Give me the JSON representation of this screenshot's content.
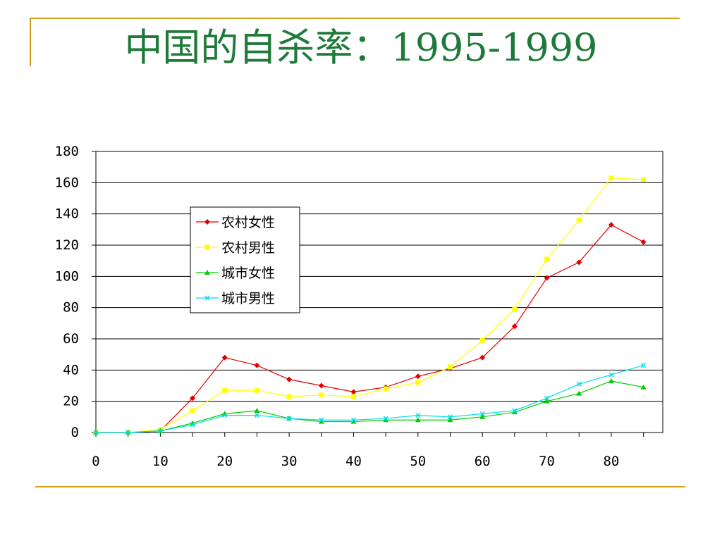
{
  "title": "中国的自杀率：1995-1999",
  "colors": {
    "accent_line": "#D4A017",
    "title": "#1F7A3A"
  },
  "chart_data": {
    "type": "line",
    "x": [
      0,
      5,
      10,
      15,
      20,
      25,
      30,
      35,
      40,
      45,
      50,
      55,
      60,
      65,
      70,
      75,
      80,
      85
    ],
    "xlim": [
      0,
      88
    ],
    "ylim": [
      0,
      180
    ],
    "x_ticks": [
      0,
      10,
      20,
      30,
      40,
      50,
      60,
      70,
      80
    ],
    "y_ticks": [
      0,
      20,
      40,
      60,
      80,
      100,
      120,
      140,
      160,
      180
    ],
    "grid": true,
    "legend": "upper-left",
    "series": [
      {
        "name": "农村女性",
        "color": "#E00000",
        "marker": "diamond",
        "values": [
          0,
          0,
          1,
          22,
          48,
          43,
          34,
          30,
          26,
          29,
          36,
          41,
          48,
          68,
          99,
          109,
          133,
          122
        ]
      },
      {
        "name": "农村男性",
        "color": "#FFFF00",
        "marker": "square",
        "values": [
          0,
          0,
          2,
          14,
          27,
          27,
          23,
          24,
          23,
          28,
          32,
          42,
          59,
          79,
          111,
          136,
          163,
          162
        ]
      },
      {
        "name": "城市女性",
        "color": "#00CC00",
        "marker": "triangle",
        "values": [
          0,
          0,
          1,
          6,
          12,
          14,
          9,
          7,
          7,
          8,
          8,
          8,
          10,
          13,
          20,
          25,
          33,
          29
        ]
      },
      {
        "name": "城市男性",
        "color": "#00DDEE",
        "marker": "x",
        "values": [
          0,
          0,
          1,
          5,
          11,
          11,
          9,
          8,
          8,
          9,
          11,
          10,
          12,
          14,
          22,
          31,
          37,
          43
        ]
      }
    ]
  }
}
